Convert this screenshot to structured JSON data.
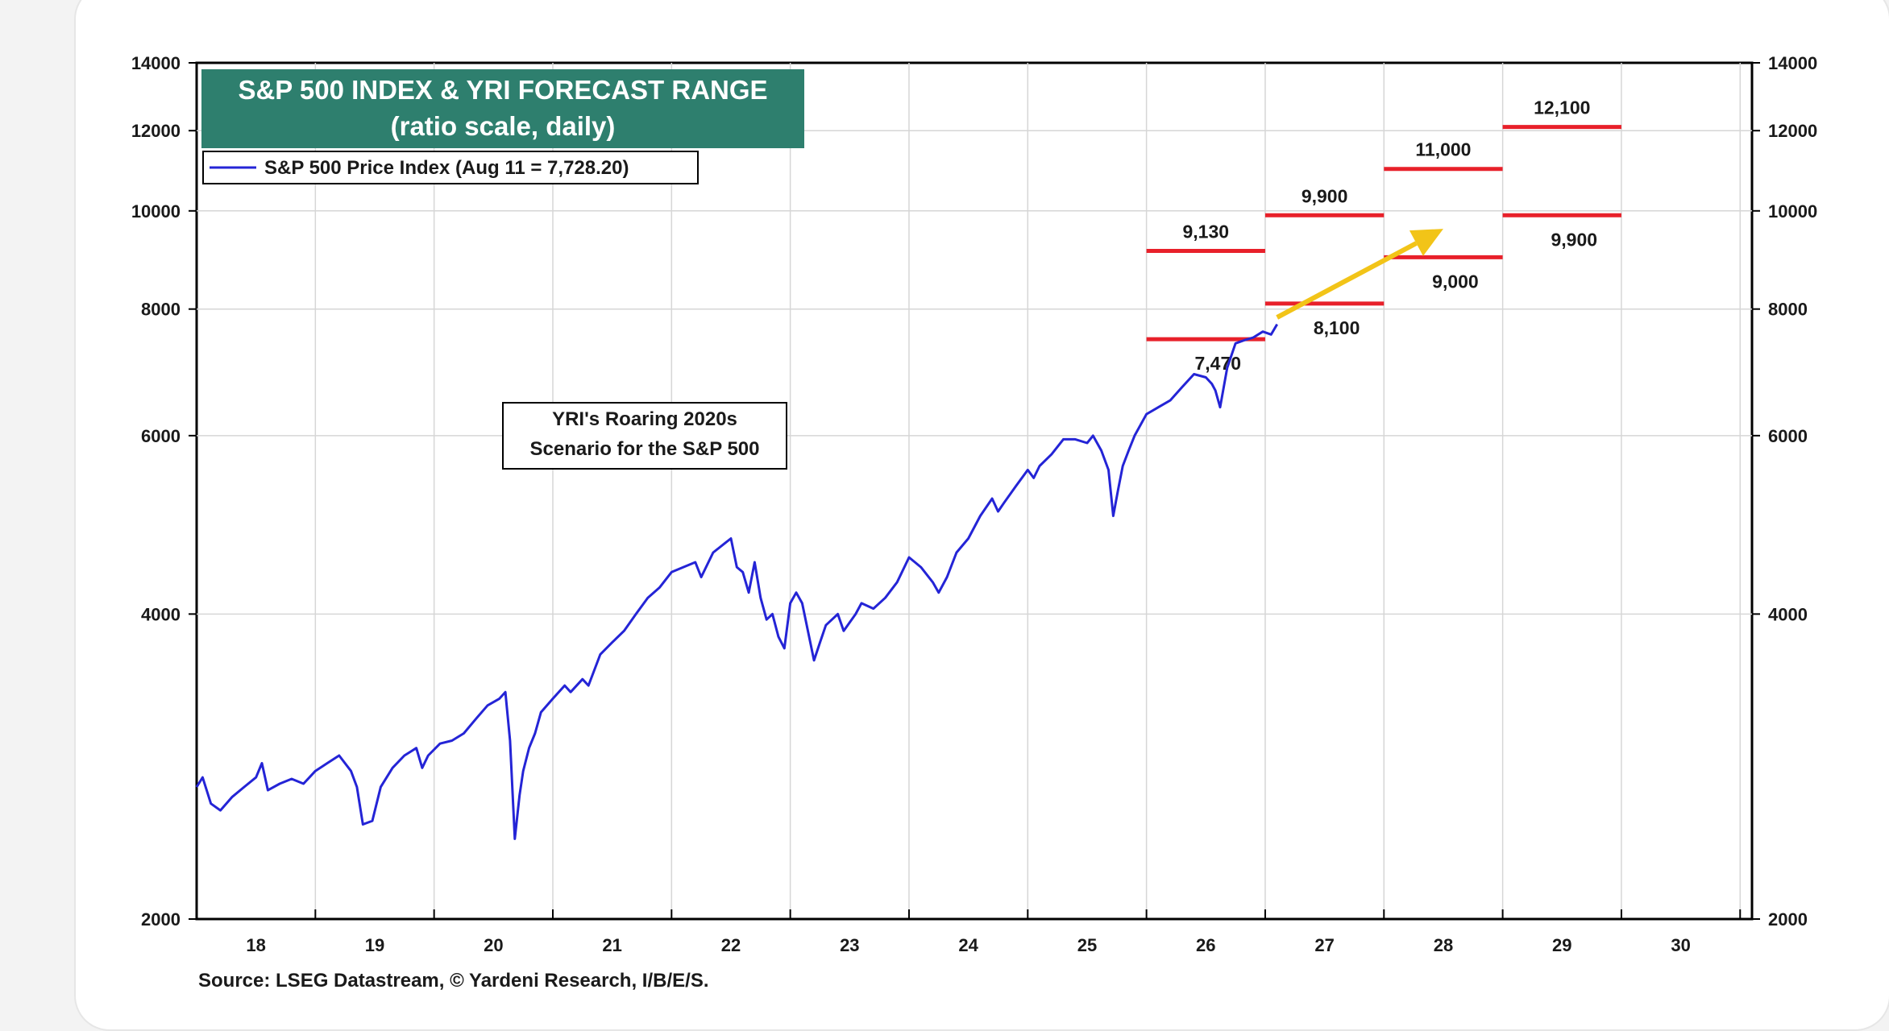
{
  "chart_data": {
    "type": "line",
    "title": "S&P 500 INDEX & YRI FORECAST RANGE",
    "subtitle": "(ratio scale, daily)",
    "legend": "S&P 500 Price Index (Aug 11 = 7,728.20)",
    "legend_placement": "top-left",
    "note_lines": [
      "YRI's Roaring 2020s",
      "Scenario for the S&P 500"
    ],
    "source": "Source: LSEG Datastream, © Yardeni Research, I/B/E/S.",
    "y_scale": "log",
    "ylim": [
      2000,
      14000
    ],
    "y_ticks": [
      2000,
      4000,
      6000,
      8000,
      10000,
      12000,
      14000
    ],
    "y_tick_labels": [
      "2000",
      "4000",
      "6000",
      "8000",
      "10000",
      "12000",
      "14000"
    ],
    "xlim": [
      2017.5,
      2030.6
    ],
    "x_ticks": [
      2018,
      2019,
      2020,
      2021,
      2022,
      2023,
      2024,
      2025,
      2026,
      2027,
      2028,
      2029,
      2030
    ],
    "x_tick_labels": [
      "18",
      "19",
      "20",
      "21",
      "22",
      "23",
      "24",
      "25",
      "26",
      "27",
      "28",
      "29",
      "30"
    ],
    "grid": true,
    "colors": {
      "series": "#2424d6",
      "forecast": "#e8202a",
      "arrow": "#f2c418",
      "title_bg": "#2e7f6e",
      "grid": "#d6d6d6"
    },
    "series": [
      {
        "name": "S&P 500 Price Index (Aug 11 = 7,728.20)",
        "x": [
          2017.5,
          2017.55,
          2017.62,
          2017.7,
          2017.8,
          2017.9,
          2018.0,
          2018.05,
          2018.1,
          2018.2,
          2018.3,
          2018.4,
          2018.5,
          2018.6,
          2018.7,
          2018.8,
          2018.85,
          2018.9,
          2018.98,
          2019.05,
          2019.15,
          2019.25,
          2019.35,
          2019.4,
          2019.45,
          2019.55,
          2019.65,
          2019.75,
          2019.85,
          2019.95,
          2020.05,
          2020.1,
          2020.14,
          2020.18,
          2020.22,
          2020.25,
          2020.3,
          2020.35,
          2020.4,
          2020.5,
          2020.6,
          2020.65,
          2020.75,
          2020.8,
          2020.9,
          2021.0,
          2021.1,
          2021.2,
          2021.3,
          2021.4,
          2021.5,
          2021.6,
          2021.7,
          2021.75,
          2021.85,
          2021.95,
          2022.0,
          2022.05,
          2022.1,
          2022.15,
          2022.2,
          2022.25,
          2022.3,
          2022.35,
          2022.4,
          2022.45,
          2022.5,
          2022.55,
          2022.6,
          2022.7,
          2022.75,
          2022.8,
          2022.9,
          2022.95,
          2023.05,
          2023.1,
          2023.2,
          2023.3,
          2023.4,
          2023.5,
          2023.55,
          2023.6,
          2023.7,
          2023.75,
          2023.82,
          2023.9,
          2024.0,
          2024.1,
          2024.2,
          2024.25,
          2024.3,
          2024.4,
          2024.5,
          2024.55,
          2024.6,
          2024.7,
          2024.8,
          2024.9,
          2025.0,
          2025.05,
          2025.12,
          2025.18,
          2025.22,
          2025.26,
          2025.3,
          2025.35,
          2025.4,
          2025.5,
          2025.6,
          2025.7,
          2025.8,
          2025.9,
          2026.0,
          2026.05,
          2026.08,
          2026.12,
          2026.18,
          2026.25,
          2026.32,
          2026.4,
          2026.48,
          2026.55,
          2026.6
        ],
        "values": [
          2700,
          2760,
          2600,
          2560,
          2640,
          2700,
          2760,
          2850,
          2680,
          2720,
          2750,
          2720,
          2800,
          2850,
          2900,
          2800,
          2700,
          2480,
          2500,
          2700,
          2820,
          2900,
          2950,
          2820,
          2900,
          2980,
          3000,
          3050,
          3150,
          3250,
          3300,
          3350,
          3000,
          2400,
          2650,
          2800,
          2950,
          3050,
          3200,
          3300,
          3400,
          3350,
          3450,
          3400,
          3650,
          3750,
          3850,
          4000,
          4150,
          4250,
          4400,
          4450,
          4500,
          4350,
          4600,
          4700,
          4750,
          4450,
          4400,
          4200,
          4500,
          4150,
          3950,
          4000,
          3800,
          3700,
          4100,
          4200,
          4100,
          3600,
          3750,
          3900,
          4000,
          3850,
          4000,
          4100,
          4050,
          4150,
          4300,
          4550,
          4500,
          4450,
          4300,
          4200,
          4350,
          4600,
          4750,
          5000,
          5200,
          5050,
          5150,
          5350,
          5550,
          5450,
          5600,
          5750,
          5950,
          5950,
          5900,
          6000,
          5800,
          5550,
          5000,
          5300,
          5600,
          5800,
          6000,
          6300,
          6400,
          6500,
          6700,
          6900,
          6850,
          6750,
          6650,
          6400,
          7000,
          7400,
          7450,
          7500,
          7600,
          7550,
          7728.2
        ]
      }
    ],
    "forecast_ranges": [
      {
        "x": [
          2025.5,
          2026.5
        ],
        "low": 7470,
        "high": 9130,
        "low_label": "7,470",
        "high_label": "9,130"
      },
      {
        "x": [
          2026.5,
          2027.5
        ],
        "low": 8100,
        "high": 9900,
        "low_label": "8,100",
        "high_label": "9,900"
      },
      {
        "x": [
          2027.5,
          2028.5
        ],
        "low": 9000,
        "high": 11000,
        "low_label": "9,000",
        "high_label": "11,000"
      },
      {
        "x": [
          2028.5,
          2029.5
        ],
        "low": 9900,
        "high": 12100,
        "low_label": "9,900",
        "high_label": "12,100"
      }
    ],
    "arrow": {
      "from": [
        2026.6,
        7850
      ],
      "to": [
        2028.0,
        9600
      ]
    }
  }
}
